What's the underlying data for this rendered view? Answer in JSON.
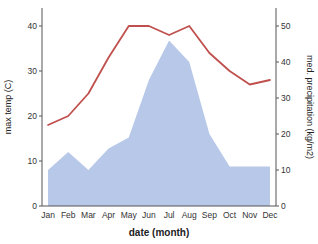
{
  "chart_data": {
    "type": "line",
    "xlabel": "date (month)",
    "ylabel": "max temp (C)",
    "y2label": "med. precipitation (kg/m2)",
    "categories": [
      "Jan",
      "Feb",
      "Mar",
      "Apr",
      "May",
      "Jun",
      "Jul",
      "Aug",
      "Sep",
      "Oct",
      "Nov",
      "Dec"
    ],
    "series": [
      {
        "type": "area",
        "axis": "y2",
        "color": "#b8c8e8",
        "values": [
          10,
          15,
          10,
          16,
          19,
          35,
          46,
          40,
          20,
          11,
          11,
          11
        ]
      },
      {
        "type": "line",
        "color": "#c0504d",
        "values": [
          18,
          20,
          25,
          33,
          40,
          40,
          38,
          40,
          34,
          30,
          27,
          28
        ]
      }
    ],
    "ylim": [
      0,
      44
    ],
    "yticks": [
      0,
      10,
      20,
      30,
      40
    ],
    "y2lim": [
      0,
      55
    ],
    "y2ticks": [
      0,
      10,
      20,
      30,
      40,
      50
    ],
    "grid": false
  }
}
